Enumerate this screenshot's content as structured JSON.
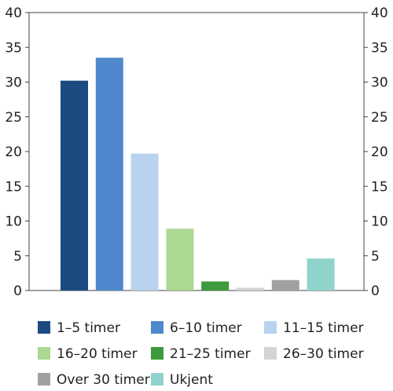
{
  "chart_data": {
    "type": "bar",
    "title": "",
    "xlabel": "",
    "ylabel": "",
    "ylim": [
      0,
      40
    ],
    "yticks": [
      0,
      5,
      10,
      15,
      20,
      25,
      30,
      35,
      40
    ],
    "grid": false,
    "right_axis": true,
    "legend_position": "bottom",
    "categories": [
      "1–5 timer",
      "6–10 timer",
      "11–15 timer",
      "16–20 timer",
      "21–25 timer",
      "26–30 timer",
      "Over 30 timer",
      "Ukjent"
    ],
    "values": [
      30.2,
      33.5,
      19.7,
      8.9,
      1.3,
      0.4,
      1.5,
      4.6
    ],
    "colors": [
      "#1c4b82",
      "#4f88cc",
      "#b9d3ef",
      "#add893",
      "#3e9a3c",
      "#d4d4d4",
      "#a0a0a3",
      "#8fd3cc"
    ]
  }
}
